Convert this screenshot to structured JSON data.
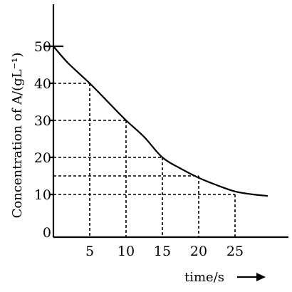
{
  "chart_data": {
    "type": "line",
    "title": "",
    "xlabel": "time/s",
    "ylabel": "Concentration of A/(gL⁻¹)",
    "xlim": [
      0,
      31
    ],
    "ylim": [
      0,
      55
    ],
    "grid": false,
    "legend": "none",
    "x_ticks": [
      5,
      10,
      15,
      20,
      25
    ],
    "x_tick_labels": [
      "5",
      "10",
      "15",
      "20",
      "25"
    ],
    "y_ticks": [
      0,
      10,
      20,
      30,
      40,
      50
    ],
    "y_tick_labels": [
      "0",
      "10",
      "20",
      "30",
      "40",
      "50"
    ],
    "series": [
      {
        "color": "#000000",
        "points": [
          {
            "x": 0,
            "y": 50
          },
          {
            "x": 2,
            "y": 45.5
          },
          {
            "x": 5,
            "y": 40
          },
          {
            "x": 7.5,
            "y": 35
          },
          {
            "x": 10,
            "y": 30
          },
          {
            "x": 12.5,
            "y": 25.5
          },
          {
            "x": 15,
            "y": 20
          },
          {
            "x": 17.5,
            "y": 17
          },
          {
            "x": 20,
            "y": 14.5
          },
          {
            "x": 22.5,
            "y": 12.5
          },
          {
            "x": 25,
            "y": 10.8
          },
          {
            "x": 27.5,
            "y": 10
          },
          {
            "x": 29.5,
            "y": 9.6
          }
        ]
      }
    ],
    "guide_lines": [
      {
        "x": 5,
        "y": 40
      },
      {
        "x": 10,
        "y": 30
      },
      {
        "x": 15,
        "y": 20
      },
      {
        "x": 20,
        "y": 15
      },
      {
        "x": 25,
        "y": 10
      }
    ],
    "colors": {
      "line": "#000000",
      "axis": "#000000",
      "background": "#ffffff"
    }
  }
}
